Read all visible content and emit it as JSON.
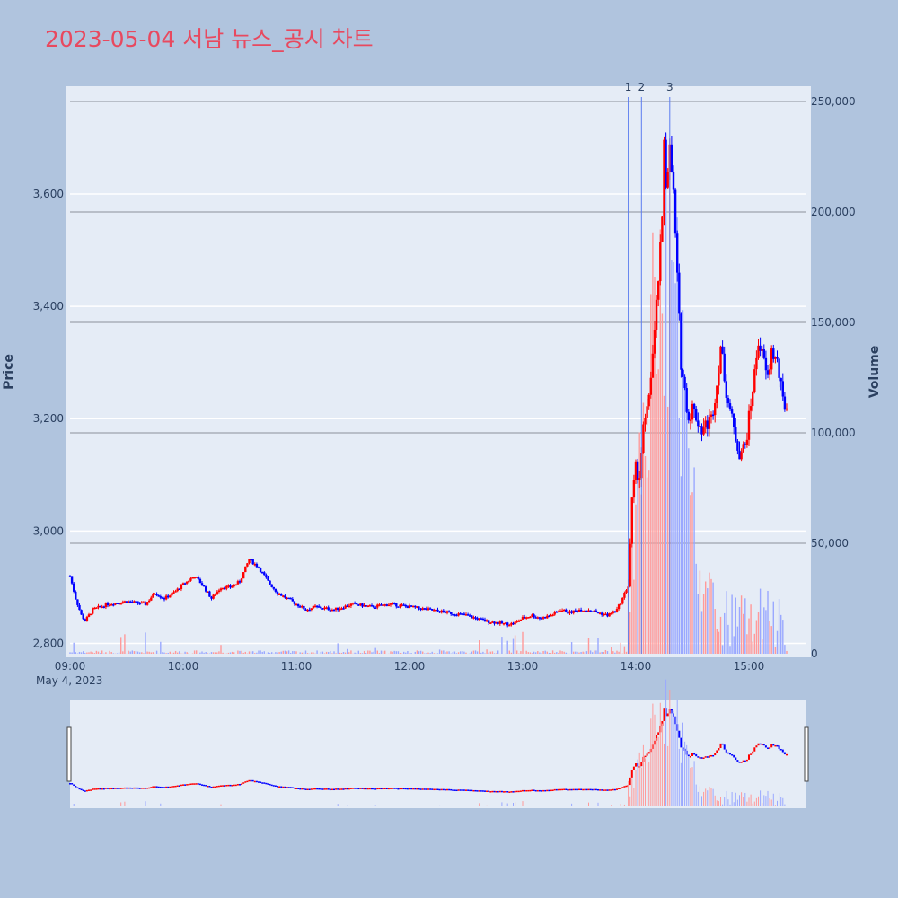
{
  "title": "2023-05-04 서남 뉴스_공시 차트",
  "colors": {
    "background": "#b0c4de",
    "plot_bg": "#e5ecf6",
    "up": "#ff0000",
    "down": "#0000ff",
    "title": "#e8495f",
    "news_line": "#5b7cf0"
  },
  "chart_data": {
    "type": "candlestick",
    "title": "2023-05-04 서남 뉴스_공시 차트",
    "xlabel": "",
    "ylabel": "Price",
    "y2label": "Volume",
    "date_label": "May 4, 2023",
    "x_range": [
      "09:00",
      "15:30"
    ],
    "ylim": [
      2780,
      3800
    ],
    "y2lim": [
      0,
      255000
    ],
    "x_ticks": [
      "09:00",
      "10:00",
      "11:00",
      "12:00",
      "13:00",
      "14:00",
      "15:00"
    ],
    "y_ticks": [
      "2,800",
      "3,000",
      "3,200",
      "3,400",
      "3,600"
    ],
    "y2_ticks": [
      "0",
      "50,000",
      "100,000",
      "150,000",
      "200,000",
      "250,000"
    ],
    "news_markers": [
      {
        "label": "1",
        "time": "13:56"
      },
      {
        "label": "2",
        "time": "14:03"
      },
      {
        "label": "3",
        "time": "14:18"
      }
    ],
    "price_path": [
      [
        "09:00",
        2920
      ],
      [
        "09:03",
        2880
      ],
      [
        "09:06",
        2850
      ],
      [
        "09:08",
        2840
      ],
      [
        "09:12",
        2860
      ],
      [
        "09:20",
        2870
      ],
      [
        "09:30",
        2875
      ],
      [
        "09:40",
        2870
      ],
      [
        "09:45",
        2890
      ],
      [
        "09:50",
        2880
      ],
      [
        "09:55",
        2890
      ],
      [
        "10:00",
        2905
      ],
      [
        "10:06",
        2920
      ],
      [
        "10:10",
        2905
      ],
      [
        "10:15",
        2880
      ],
      [
        "10:20",
        2900
      ],
      [
        "10:25",
        2900
      ],
      [
        "10:30",
        2910
      ],
      [
        "10:35",
        2950
      ],
      [
        "10:40",
        2935
      ],
      [
        "10:45",
        2910
      ],
      [
        "10:50",
        2890
      ],
      [
        "10:55",
        2880
      ],
      [
        "11:00",
        2870
      ],
      [
        "11:05",
        2860
      ],
      [
        "11:10",
        2865
      ],
      [
        "11:20",
        2860
      ],
      [
        "11:30",
        2870
      ],
      [
        "11:40",
        2865
      ],
      [
        "11:50",
        2870
      ],
      [
        "12:00",
        2865
      ],
      [
        "12:10",
        2860
      ],
      [
        "12:20",
        2855
      ],
      [
        "12:30",
        2850
      ],
      [
        "12:40",
        2840
      ],
      [
        "12:50",
        2835
      ],
      [
        "12:55",
        2835
      ],
      [
        "13:00",
        2845
      ],
      [
        "13:05",
        2850
      ],
      [
        "13:10",
        2845
      ],
      [
        "13:15",
        2850
      ],
      [
        "13:20",
        2860
      ],
      [
        "13:25",
        2855
      ],
      [
        "13:30",
        2860
      ],
      [
        "13:35",
        2860
      ],
      [
        "13:40",
        2855
      ],
      [
        "13:45",
        2850
      ],
      [
        "13:50",
        2860
      ],
      [
        "13:53",
        2880
      ],
      [
        "13:56",
        2905
      ],
      [
        "13:58",
        3050
      ],
      [
        "14:00",
        3110
      ],
      [
        "14:02",
        3100
      ],
      [
        "14:04",
        3180
      ],
      [
        "14:06",
        3210
      ],
      [
        "14:08",
        3280
      ],
      [
        "14:10",
        3350
      ],
      [
        "14:12",
        3450
      ],
      [
        "14:14",
        3550
      ],
      [
        "14:15",
        3700
      ],
      [
        "14:16",
        3620
      ],
      [
        "14:18",
        3680
      ],
      [
        "14:20",
        3600
      ],
      [
        "14:22",
        3450
      ],
      [
        "14:24",
        3300
      ],
      [
        "14:26",
        3250
      ],
      [
        "14:28",
        3200
      ],
      [
        "14:30",
        3220
      ],
      [
        "14:35",
        3180
      ],
      [
        "14:40",
        3200
      ],
      [
        "14:43",
        3260
      ],
      [
        "14:45",
        3330
      ],
      [
        "14:48",
        3250
      ],
      [
        "14:52",
        3180
      ],
      [
        "14:55",
        3140
      ],
      [
        "14:58",
        3150
      ],
      [
        "15:00",
        3200
      ],
      [
        "15:03",
        3280
      ],
      [
        "15:05",
        3340
      ],
      [
        "15:08",
        3300
      ],
      [
        "15:10",
        3270
      ],
      [
        "15:12",
        3320
      ],
      [
        "15:15",
        3300
      ],
      [
        "15:18",
        3230
      ],
      [
        "15:20",
        3220
      ]
    ]
  }
}
